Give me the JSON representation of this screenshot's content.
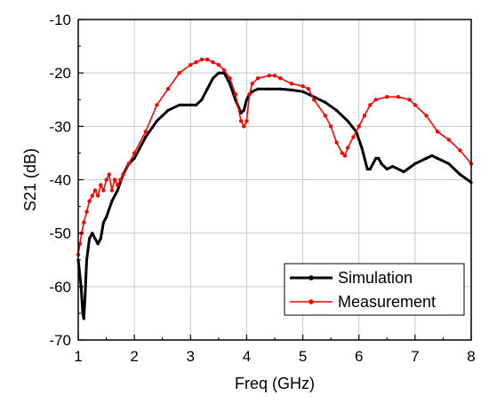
{
  "chart_data": {
    "type": "line",
    "title": "",
    "xlabel": "Freq (GHz)",
    "ylabel": "S21 (dB)",
    "xlim": [
      1,
      8
    ],
    "ylim": [
      -70,
      -10
    ],
    "xticks": [
      1,
      2,
      3,
      4,
      5,
      6,
      7,
      8
    ],
    "yticks": [
      -70,
      -60,
      -50,
      -40,
      -30,
      -20,
      -10
    ],
    "grid": true,
    "legend_position": "bottom-right",
    "series": [
      {
        "name": "Simulation",
        "color": "#000000",
        "x": [
          1.0,
          1.05,
          1.08,
          1.1,
          1.12,
          1.15,
          1.2,
          1.25,
          1.3,
          1.35,
          1.4,
          1.45,
          1.5,
          1.6,
          1.7,
          1.8,
          1.9,
          2.0,
          2.2,
          2.4,
          2.6,
          2.8,
          3.0,
          3.1,
          3.2,
          3.3,
          3.4,
          3.5,
          3.6,
          3.7,
          3.8,
          3.9,
          3.95,
          4.0,
          4.05,
          4.1,
          4.2,
          4.4,
          4.6,
          4.8,
          5.0,
          5.2,
          5.4,
          5.6,
          5.8,
          5.95,
          6.05,
          6.15,
          6.2,
          6.3,
          6.35,
          6.4,
          6.5,
          6.6,
          6.8,
          7.0,
          7.2,
          7.3,
          7.4,
          7.6,
          7.8,
          8.0
        ],
        "y": [
          -55,
          -60,
          -65,
          -66,
          -62,
          -55,
          -51,
          -50,
          -51,
          -52,
          -51,
          -48,
          -47,
          -44,
          -42,
          -39,
          -37,
          -36,
          -32,
          -29,
          -27,
          -26,
          -26,
          -26,
          -25,
          -23,
          -21,
          -20,
          -20,
          -22,
          -25,
          -27.5,
          -27,
          -25,
          -24,
          -23.5,
          -23,
          -23,
          -23,
          -23.2,
          -23.5,
          -24.5,
          -25.5,
          -27,
          -29,
          -31,
          -34,
          -38,
          -38,
          -36,
          -36,
          -37,
          -38,
          -37.5,
          -38.5,
          -37,
          -36,
          -35.5,
          -36,
          -37,
          -39,
          -40.5
        ]
      },
      {
        "name": "Measurement",
        "color": "#ff0000",
        "x": [
          1.0,
          1.03,
          1.06,
          1.1,
          1.15,
          1.2,
          1.25,
          1.3,
          1.35,
          1.4,
          1.45,
          1.5,
          1.55,
          1.6,
          1.65,
          1.7,
          1.75,
          1.8,
          1.9,
          2.0,
          2.2,
          2.4,
          2.6,
          2.8,
          3.0,
          3.1,
          3.2,
          3.3,
          3.4,
          3.5,
          3.6,
          3.7,
          3.8,
          3.9,
          3.95,
          4.0,
          4.05,
          4.1,
          4.2,
          4.4,
          4.5,
          4.6,
          4.8,
          5.0,
          5.1,
          5.2,
          5.4,
          5.5,
          5.6,
          5.7,
          5.75,
          5.8,
          5.9,
          6.0,
          6.1,
          6.2,
          6.3,
          6.5,
          6.7,
          6.9,
          7.0,
          7.2,
          7.4,
          7.6,
          7.8,
          8.0
        ],
        "y": [
          -54,
          -52,
          -50,
          -48,
          -46,
          -44,
          -43,
          -42,
          -43,
          -41,
          -42,
          -40,
          -39,
          -42,
          -40,
          -41,
          -40,
          -39,
          -37,
          -35,
          -31,
          -26,
          -23,
          -20,
          -18.5,
          -18,
          -17.5,
          -17.5,
          -18,
          -18.5,
          -19.5,
          -21,
          -24,
          -29,
          -30,
          -29,
          -24,
          -22,
          -21,
          -20.5,
          -20.5,
          -21,
          -22,
          -22.5,
          -23,
          -25,
          -28,
          -30,
          -33,
          -35,
          -35.5,
          -34,
          -32,
          -30,
          -28,
          -26,
          -25,
          -24.5,
          -24.5,
          -25,
          -26,
          -28,
          -31,
          -32.5,
          -34.5,
          -37
        ]
      }
    ]
  }
}
